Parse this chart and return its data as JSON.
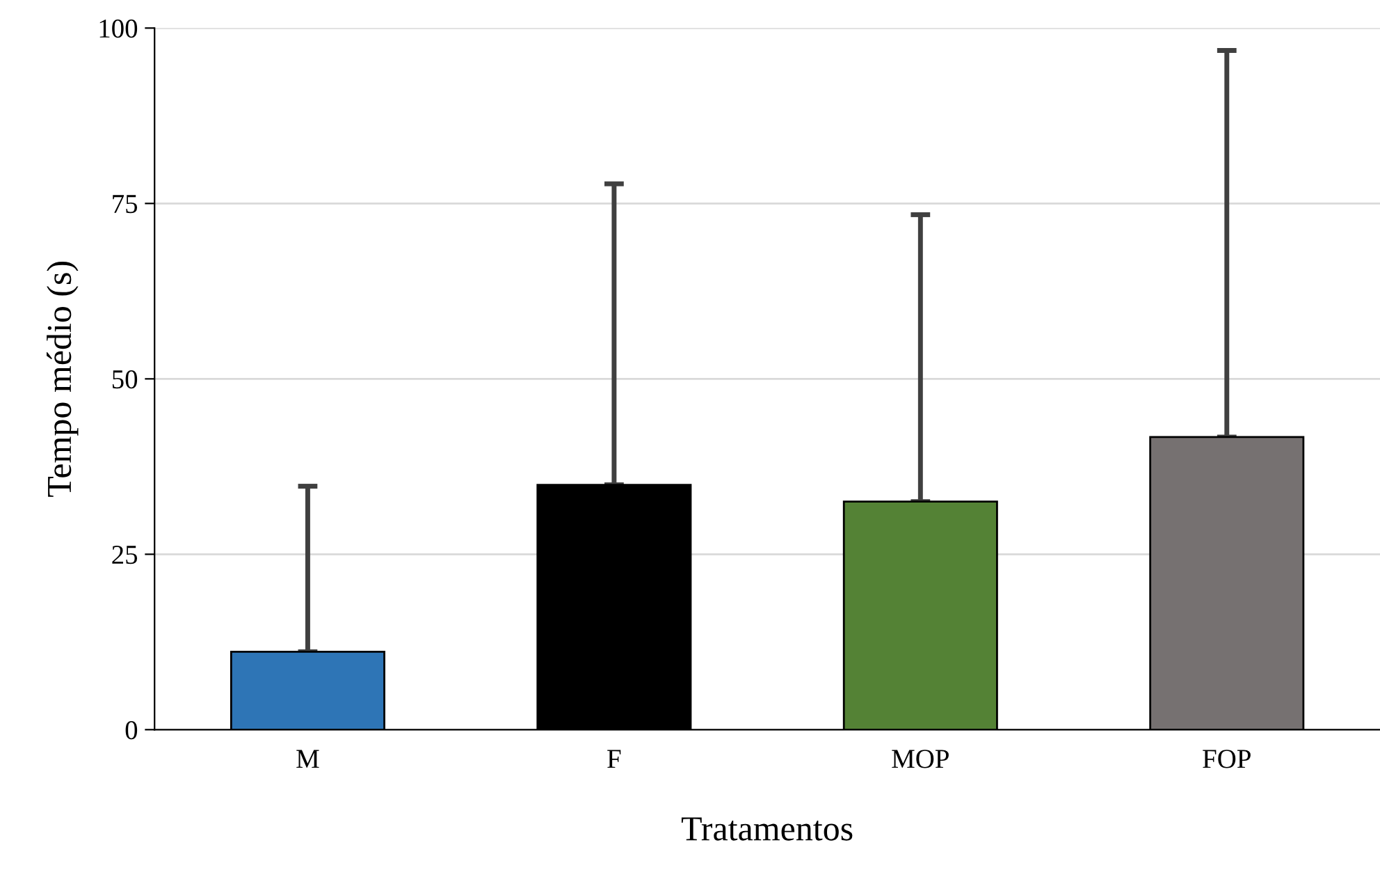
{
  "chart_data": {
    "type": "bar",
    "xlabel": "Tratamentos",
    "ylabel": "Tempo médio (s)",
    "categories": [
      "M",
      "F",
      "MOP",
      "FOP"
    ],
    "values": [
      11.1,
      34.9,
      32.5,
      41.7
    ],
    "colors": [
      "#2e75b6",
      "#000000",
      "#548235",
      "#767171"
    ],
    "errors": [
      [
        11.1,
        34.7
      ],
      [
        34.9,
        77.8
      ],
      [
        32.5,
        73.4
      ],
      [
        41.7,
        96.8
      ]
    ],
    "ylim": [
      0,
      100
    ],
    "yticks": [
      0,
      25,
      50,
      75,
      100
    ],
    "grid": "y",
    "legend": false
  }
}
